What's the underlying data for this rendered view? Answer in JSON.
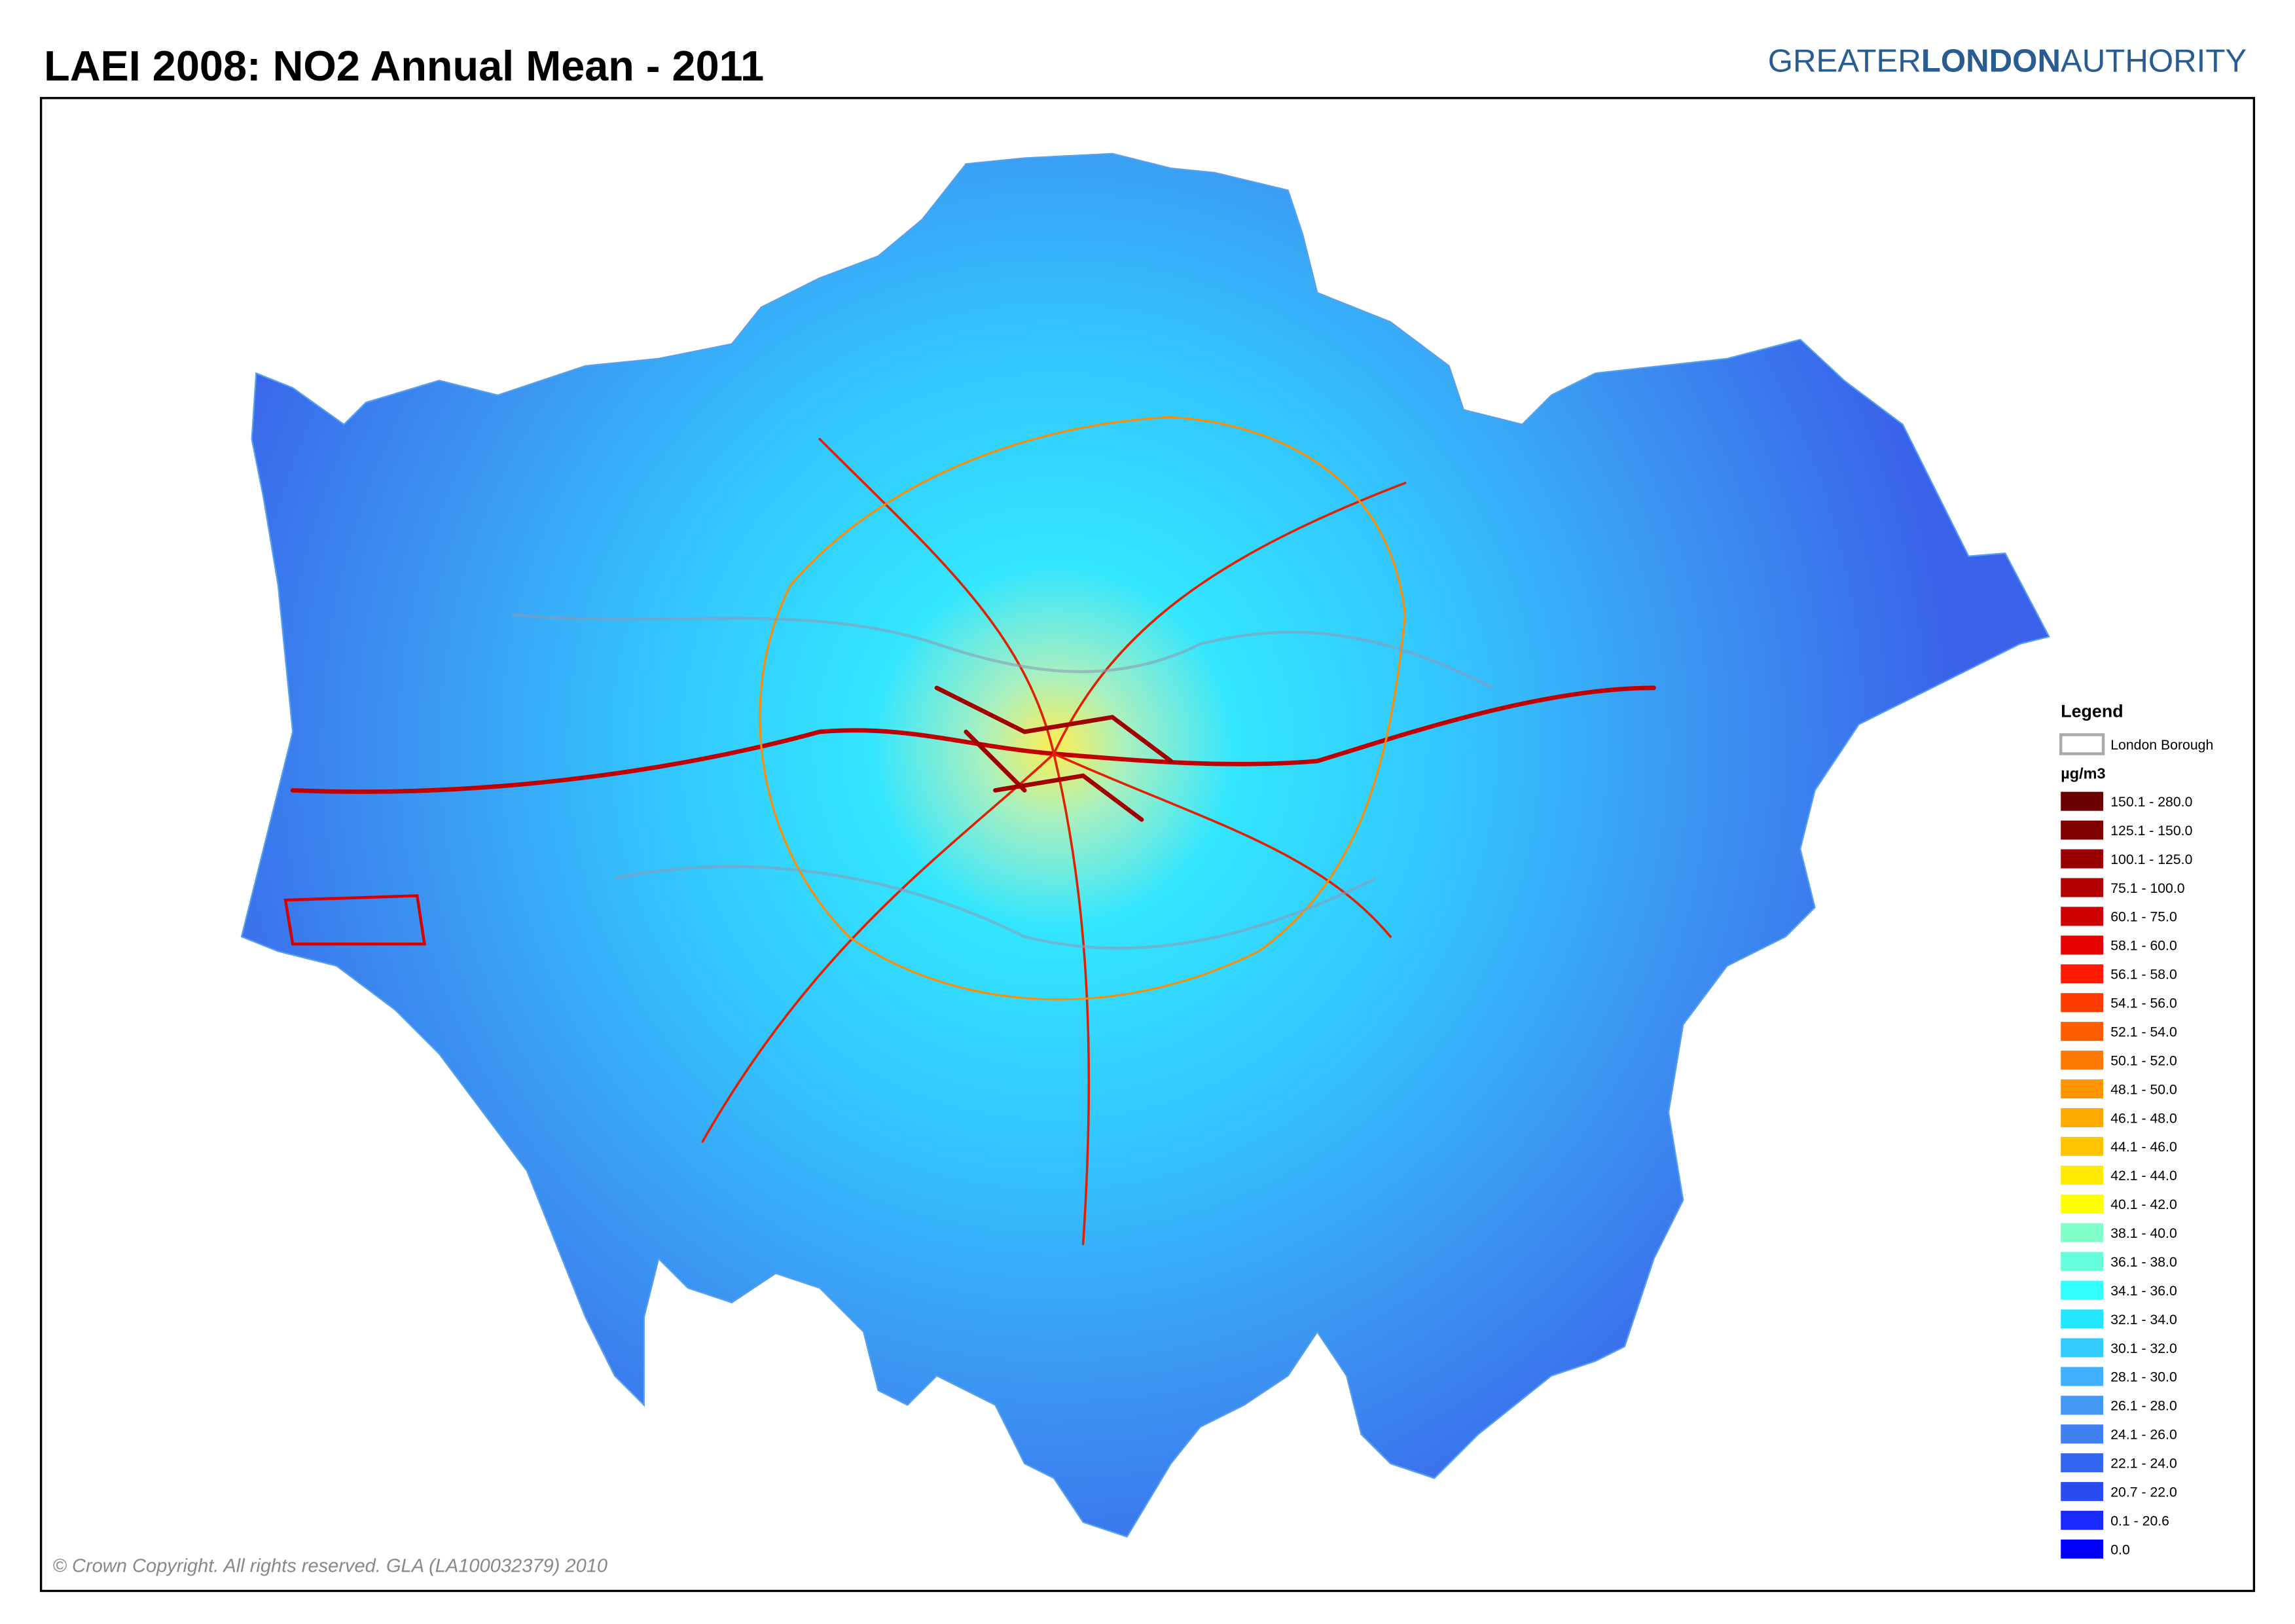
{
  "header": {
    "title": "LAEI 2008: NO2 Annual Mean - 2011",
    "logo": [
      "GREATER",
      "LONDON",
      "AUTHORITY"
    ]
  },
  "legend": {
    "title": "Legend",
    "boundary": "London Borough",
    "unit": "µg/m3",
    "items": [
      {
        "label": "150.1 - 280.0",
        "color": "#6b0000"
      },
      {
        "label": "125.1 - 150.0",
        "color": "#800000"
      },
      {
        "label": "100.1 - 125.0",
        "color": "#990000"
      },
      {
        "label": "75.1 - 100.0",
        "color": "#b30000"
      },
      {
        "label": "60.1 - 75.0",
        "color": "#cc0000"
      },
      {
        "label": "58.1 - 60.0",
        "color": "#e60000"
      },
      {
        "label": "56.1 - 58.0",
        "color": "#ff1a00"
      },
      {
        "label": "54.1 - 56.0",
        "color": "#ff3d00"
      },
      {
        "label": "52.1 - 54.0",
        "color": "#ff5e00"
      },
      {
        "label": "50.1 - 52.0",
        "color": "#ff7a00"
      },
      {
        "label": "48.1 - 50.0",
        "color": "#ff9400"
      },
      {
        "label": "46.1 - 48.0",
        "color": "#ffaa00"
      },
      {
        "label": "44.1 - 46.0",
        "color": "#ffc400"
      },
      {
        "label": "42.1 - 44.0",
        "color": "#ffea00"
      },
      {
        "label": "40.1 - 42.0",
        "color": "#ffff00"
      },
      {
        "label": "38.1 - 40.0",
        "color": "#80ffc8"
      },
      {
        "label": "36.1 - 38.0",
        "color": "#66ffdd"
      },
      {
        "label": "34.1 - 36.0",
        "color": "#33ffff"
      },
      {
        "label": "32.1 - 34.0",
        "color": "#22e8ff"
      },
      {
        "label": "30.1 - 32.0",
        "color": "#33ccff"
      },
      {
        "label": "28.1 - 30.0",
        "color": "#3fb0ff"
      },
      {
        "label": "26.1 - 28.0",
        "color": "#4499f5"
      },
      {
        "label": "24.1 - 26.0",
        "color": "#4080f0"
      },
      {
        "label": "22.1 - 24.0",
        "color": "#3366ee"
      },
      {
        "label": "20.7 - 22.0",
        "color": "#2a4bf0"
      },
      {
        "label": "0.1 - 20.6",
        "color": "#1a2aff"
      },
      {
        "label": "0.0",
        "color": "#0000ff"
      }
    ]
  },
  "footer": {
    "copyright": "© Crown Copyright. All rights reserved. GLA (LA100032379) 2010"
  }
}
